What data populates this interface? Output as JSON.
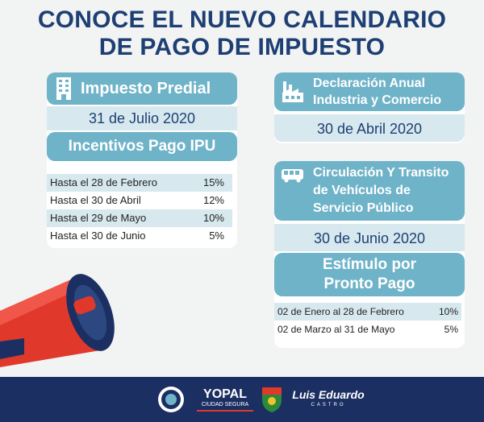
{
  "title": {
    "line1": "CONOCE EL NUEVO CALENDARIO",
    "line2": "DE PAGO DE IMPUESTO"
  },
  "predial": {
    "header": "Impuesto Predial",
    "icon": "building-icon",
    "date": "31 de Julio 2020",
    "incentives_header": "Incentivos Pago IPU",
    "rows": [
      {
        "label": "Hasta el 28 de Febrero",
        "value": "15%"
      },
      {
        "label": "Hasta el 30 de Abril",
        "value": "12%"
      },
      {
        "label": "Hasta el 29 de Mayo",
        "value": "10%"
      },
      {
        "label": "Hasta el 30 de Junio",
        "value": "5%"
      }
    ]
  },
  "ica": {
    "header_line1": "Declaración Anual",
    "header_line2": "Industria y Comercio",
    "icon": "factory-icon",
    "date": "30 de Abril 2020"
  },
  "transito": {
    "header_line1": "Circulación Y Transito",
    "header_line2": "de Vehículos de",
    "header_line3": "Servicio Público",
    "icon": "bus-icon",
    "date": "30 de Junio 2020",
    "stimulus_line1": "Estímulo por",
    "stimulus_line2": "Pronto Pago",
    "rows": [
      {
        "label": "02 de Enero al 28 de Febrero",
        "value": "10%"
      },
      {
        "label": "02 de Marzo al 31 de Mayo",
        "value": "5%"
      }
    ]
  },
  "footer": {
    "logo_yopal": "YOPAL",
    "logo_yopal_sub": "CIUDAD SEGURA",
    "logo_signature": "Luis Eduardo",
    "logo_signature_sub": "CASTRO"
  },
  "colors": {
    "navy": "#1d3f73",
    "teal": "#6fb3c9",
    "light": "#d7e9ef",
    "footer": "#1b2f62",
    "megaphone": "#e0382b"
  }
}
